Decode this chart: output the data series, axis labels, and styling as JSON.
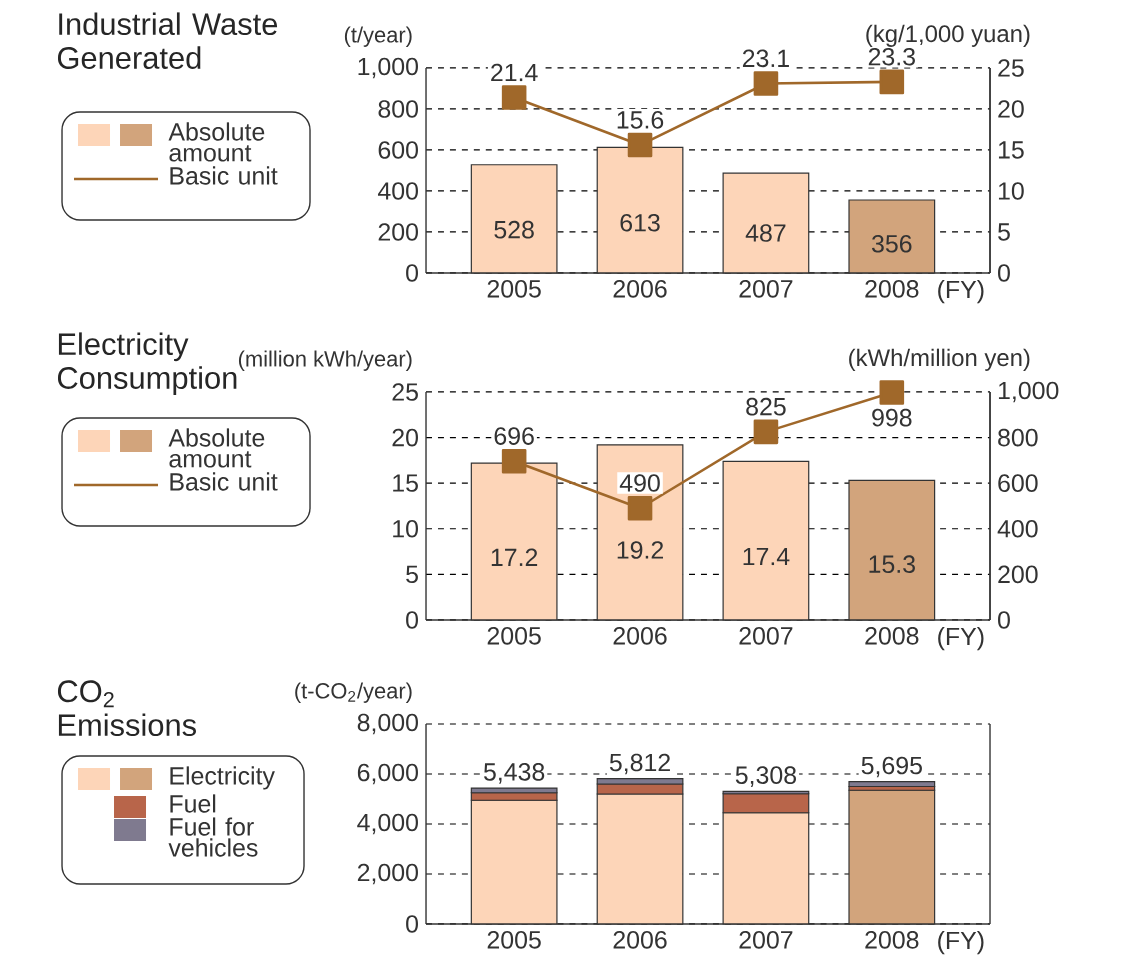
{
  "chart_data": [
    {
      "type": "bar",
      "title": "Industrial Waste Generated",
      "categories": [
        "2005",
        "2006",
        "2007",
        "2008"
      ],
      "xlabel": "(FY)",
      "ylabel": "(t/year)",
      "y2label": "(kg/1,000 yuan)",
      "ylim": [
        0,
        1000
      ],
      "yticks": [
        0,
        200,
        400,
        600,
        800,
        {
          "value": 1000,
          "label": "1,000"
        }
      ],
      "y2lim": [
        0,
        25
      ],
      "y2ticks": [
        0,
        5,
        10,
        15,
        20,
        25
      ],
      "grid": "y",
      "legend": "left",
      "marker": "square",
      "series": [
        {
          "name": "Absolute amount",
          "type": "bar",
          "colors": [
            "#fdd5b8",
            "#fdd5b8",
            "#fdd5b8",
            "#d2a47c"
          ],
          "values": [
            528,
            613,
            487,
            356
          ],
          "value_labels": [
            "528",
            "613",
            "487",
            "356"
          ]
        },
        {
          "name": "Basic unit",
          "type": "line",
          "axis": "y2",
          "color": "#a0682a",
          "values": [
            21.4,
            15.6,
            23.1,
            23.3
          ],
          "value_labels": [
            "21.4",
            "15.6",
            "23.1",
            "23.3"
          ]
        }
      ]
    },
    {
      "type": "bar",
      "title": "Electricity Consumption",
      "categories": [
        "2005",
        "2006",
        "2007",
        "2008"
      ],
      "xlabel": "(FY)",
      "ylabel": "(million kWh/year)",
      "y2label": "(kWh/million yen)",
      "ylim": [
        0,
        25
      ],
      "yticks": [
        0,
        5,
        10,
        15,
        20,
        25
      ],
      "y2lim": [
        0,
        1000
      ],
      "y2ticks": [
        0,
        200,
        400,
        600,
        800,
        {
          "value": 1000,
          "label": "1,000"
        }
      ],
      "grid": "y",
      "legend": "left",
      "marker": "square",
      "series": [
        {
          "name": "Absolute amount",
          "type": "bar",
          "colors": [
            "#fdd5b8",
            "#fdd5b8",
            "#fdd5b8",
            "#d2a47c"
          ],
          "values": [
            17.2,
            19.2,
            17.4,
            15.3
          ],
          "value_labels": [
            "17.2",
            "19.2",
            "17.4",
            "15.3"
          ]
        },
        {
          "name": "Basic unit",
          "type": "line",
          "axis": "y2",
          "color": "#a0682a",
          "values": [
            696,
            490,
            825,
            998
          ],
          "value_labels": [
            "696",
            "490",
            "825",
            "998"
          ]
        }
      ]
    },
    {
      "type": "bar",
      "title": "CO$_{2}$ Emissions",
      "categories": [
        "2005",
        "2006",
        "2007",
        "2008"
      ],
      "xlabel": "(FY)",
      "ylabel": "(t-CO$_{2}$/year)",
      "ylim": [
        0,
        8000
      ],
      "yticks": [
        0,
        {
          "value": 2000,
          "label": "2,000"
        },
        {
          "value": 4000,
          "label": "4,000"
        },
        {
          "value": 6000,
          "label": "6,000"
        },
        {
          "value": 8000,
          "label": "8,000"
        }
      ],
      "grid": "y",
      "legend": "left",
      "stacked": true,
      "totals": [
        "5,438",
        "5,812",
        "5,308",
        "5,695"
      ],
      "series": [
        {
          "name": "Electricity",
          "colors": [
            "#fdd5b8",
            "#fdd5b8",
            "#fdd5b8",
            "#d2a47c"
          ],
          "values": [
            4950,
            5200,
            4450,
            5350
          ]
        },
        {
          "name": "Fuel",
          "color": "#b8654a",
          "values": [
            300,
            400,
            760,
            150
          ]
        },
        {
          "name": "Fuel for vehicles",
          "color": "#7f7a8f",
          "values": [
            188,
            212,
            98,
            195
          ]
        }
      ]
    }
  ]
}
